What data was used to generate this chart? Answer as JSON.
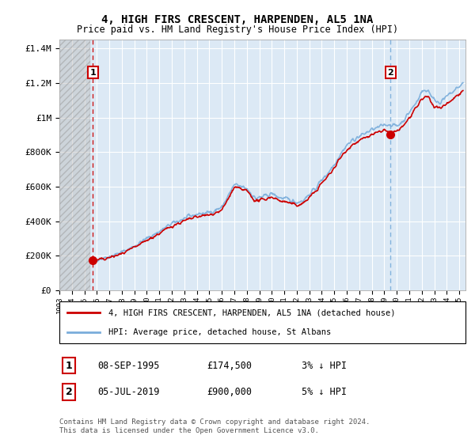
{
  "title": "4, HIGH FIRS CRESCENT, HARPENDEN, AL5 1NA",
  "subtitle": "Price paid vs. HM Land Registry's House Price Index (HPI)",
  "ylim": [
    0,
    1450000
  ],
  "xlim_start": 1993.0,
  "xlim_end": 2025.5,
  "yticks": [
    0,
    200000,
    400000,
    600000,
    800000,
    1000000,
    1200000,
    1400000
  ],
  "ytick_labels": [
    "£0",
    "£200K",
    "£400K",
    "£600K",
    "£800K",
    "£1M",
    "£1.2M",
    "£1.4M"
  ],
  "background_color": "#ffffff",
  "plot_bg_color": "#dce9f5",
  "grid_color": "#ffffff",
  "sale1_date": "08-SEP-1995",
  "sale1_price": 174500,
  "sale1_year": 1995.69,
  "sale1_label": "3% ↓ HPI",
  "sale2_date": "05-JUL-2019",
  "sale2_price": 900000,
  "sale2_year": 2019.51,
  "sale2_label": "5% ↓ HPI",
  "legend_line1": "4, HIGH FIRS CRESCENT, HARPENDEN, AL5 1NA (detached house)",
  "legend_line2": "HPI: Average price, detached house, St Albans",
  "footer_line1": "Contains HM Land Registry data © Crown copyright and database right 2024.",
  "footer_line2": "This data is licensed under the Open Government Licence v3.0.",
  "red_color": "#cc0000",
  "blue_color": "#7aaddb",
  "hatch_end_year": 1995.5,
  "sale1_vline_color": "#cc0000",
  "sale2_vline_color": "#7aaddb"
}
